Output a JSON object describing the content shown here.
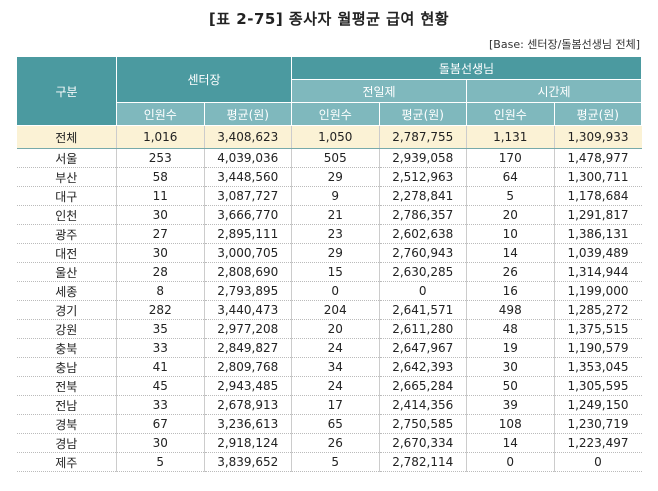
{
  "title": "[표 2-75] 종사자 월평균 급여 현황",
  "base_note": "[Base: 센터장/돌봄선생님 전체]",
  "header": {
    "category": "구분",
    "center_head": "센터장",
    "caregiver": "돌봄선생님",
    "fulltime": "전일제",
    "parttime": "시간제",
    "count": "인원수",
    "avg": "평균(원)"
  },
  "total": {
    "region": "전체",
    "values": [
      "1,016",
      "3,408,623",
      "1,050",
      "2,787,755",
      "1,131",
      "1,309,933"
    ]
  },
  "rows": [
    {
      "region": "서울",
      "values": [
        "253",
        "4,039,036",
        "505",
        "2,939,058",
        "170",
        "1,478,977"
      ]
    },
    {
      "region": "부산",
      "values": [
        "58",
        "3,448,560",
        "29",
        "2,512,963",
        "64",
        "1,300,711"
      ]
    },
    {
      "region": "대구",
      "values": [
        "11",
        "3,087,727",
        "9",
        "2,278,841",
        "5",
        "1,178,684"
      ]
    },
    {
      "region": "인천",
      "values": [
        "30",
        "3,666,770",
        "21",
        "2,786,357",
        "20",
        "1,291,817"
      ]
    },
    {
      "region": "광주",
      "values": [
        "27",
        "2,895,111",
        "23",
        "2,602,638",
        "10",
        "1,386,131"
      ]
    },
    {
      "region": "대전",
      "values": [
        "30",
        "3,000,705",
        "29",
        "2,760,943",
        "14",
        "1,039,489"
      ]
    },
    {
      "region": "울산",
      "values": [
        "28",
        "2,808,690",
        "15",
        "2,630,285",
        "26",
        "1,314,944"
      ]
    },
    {
      "region": "세종",
      "values": [
        "8",
        "2,793,895",
        "0",
        "0",
        "16",
        "1,199,000"
      ]
    },
    {
      "region": "경기",
      "values": [
        "282",
        "3,440,473",
        "204",
        "2,641,571",
        "498",
        "1,285,272"
      ]
    },
    {
      "region": "강원",
      "values": [
        "35",
        "2,977,208",
        "20",
        "2,611,280",
        "48",
        "1,375,515"
      ]
    },
    {
      "region": "충북",
      "values": [
        "33",
        "2,849,827",
        "24",
        "2,647,967",
        "19",
        "1,190,579"
      ]
    },
    {
      "region": "충남",
      "values": [
        "41",
        "2,809,768",
        "34",
        "2,642,393",
        "30",
        "1,353,045"
      ]
    },
    {
      "region": "전북",
      "values": [
        "45",
        "2,943,485",
        "24",
        "2,665,284",
        "50",
        "1,305,595"
      ]
    },
    {
      "region": "전남",
      "values": [
        "33",
        "2,678,913",
        "17",
        "2,414,356",
        "39",
        "1,249,150"
      ]
    },
    {
      "region": "경북",
      "values": [
        "67",
        "3,236,613",
        "65",
        "2,750,585",
        "108",
        "1,230,719"
      ]
    },
    {
      "region": "경남",
      "values": [
        "30",
        "2,918,124",
        "26",
        "2,670,334",
        "14",
        "1,223,497"
      ]
    },
    {
      "region": "제주",
      "values": [
        "5",
        "3,839,652",
        "5",
        "2,782,114",
        "0",
        "0"
      ]
    }
  ]
}
